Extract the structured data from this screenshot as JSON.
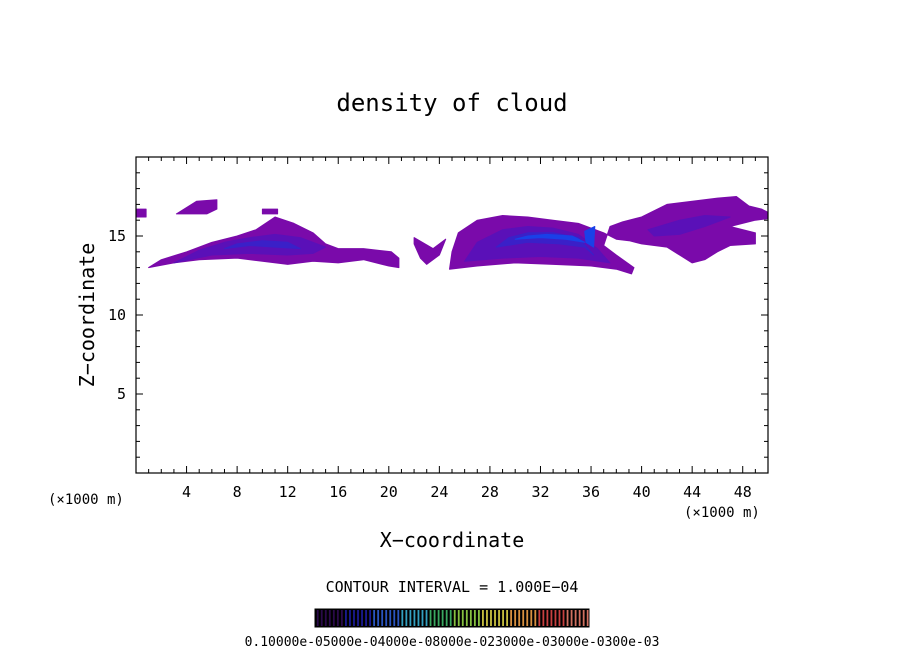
{
  "chart_data": {
    "type": "heatmap",
    "title": "density of cloud",
    "xlabel": "X−coordinate",
    "ylabel": "Z−coordinate",
    "x_unit_left": "(×1000 m)",
    "x_unit_right": "(×1000 m)",
    "xlim": [
      0,
      50
    ],
    "ylim": [
      0,
      20
    ],
    "x_ticks": [
      {
        "value": 4,
        "label": "4"
      },
      {
        "value": 8,
        "label": "8"
      },
      {
        "value": 12,
        "label": "12"
      },
      {
        "value": 16,
        "label": "16"
      },
      {
        "value": 20,
        "label": "20"
      },
      {
        "value": 24,
        "label": "24"
      },
      {
        "value": 28,
        "label": "28"
      },
      {
        "value": 32,
        "label": "32"
      },
      {
        "value": 36,
        "label": "36"
      },
      {
        "value": 40,
        "label": "40"
      },
      {
        "value": 44,
        "label": "44"
      },
      {
        "value": 48,
        "label": "48"
      }
    ],
    "y_ticks": [
      {
        "value": 5,
        "label": "5"
      },
      {
        "value": 10,
        "label": "10"
      },
      {
        "value": 15,
        "label": "15"
      }
    ],
    "grid": false,
    "contour_interval_text": "CONTOUR INTERVAL = 1.000E−04",
    "colorbar_labels_text": "0.10000e-05000e-04000e-08000e-023000e-03000e-0300e-03",
    "colorbar_colors": [
      "#2a0a4a",
      "#1a1a90",
      "#2a55c0",
      "#33a0c0",
      "#3aa860",
      "#86c040",
      "#c8c040",
      "#d89040",
      "#c84040",
      "#d07060"
    ],
    "fill_colors": {
      "level1": "#7a0aaa",
      "level2": "#5a10b8",
      "level3": "#3a20c8",
      "level4": "#1a40e8"
    },
    "cloud_regions": [
      {
        "level": 1,
        "points": [
          [
            0,
            16.2
          ],
          [
            0.8,
            16.2
          ],
          [
            0.8,
            16.7
          ],
          [
            0,
            16.7
          ]
        ]
      },
      {
        "level": 1,
        "points": [
          [
            3.2,
            16.4
          ],
          [
            4.8,
            17.2
          ],
          [
            6.4,
            17.3
          ],
          [
            6.4,
            16.7
          ],
          [
            5.6,
            16.4
          ],
          [
            4.0,
            16.4
          ]
        ]
      },
      {
        "level": 1,
        "points": [
          [
            1.0,
            13.0
          ],
          [
            3.0,
            13.3
          ],
          [
            5.0,
            13.5
          ],
          [
            8.0,
            13.6
          ],
          [
            10.0,
            13.4
          ],
          [
            12.0,
            13.2
          ],
          [
            14.0,
            13.4
          ],
          [
            16.0,
            13.3
          ],
          [
            18.0,
            13.5
          ],
          [
            20.0,
            13.1
          ],
          [
            20.8,
            13.0
          ],
          [
            20.8,
            13.6
          ],
          [
            20.2,
            14.0
          ],
          [
            18.0,
            14.2
          ],
          [
            16.0,
            14.2
          ],
          [
            15.0,
            14.5
          ],
          [
            14.0,
            15.2
          ],
          [
            12.5,
            15.8
          ],
          [
            11.0,
            16.2
          ],
          [
            9.5,
            15.4
          ],
          [
            8.0,
            15.0
          ],
          [
            6.0,
            14.6
          ],
          [
            4.0,
            14.0
          ],
          [
            2.0,
            13.5
          ]
        ]
      },
      {
        "level": 1,
        "points": [
          [
            10.0,
            16.4
          ],
          [
            11.2,
            16.4
          ],
          [
            11.2,
            16.7
          ],
          [
            10.0,
            16.7
          ]
        ]
      },
      {
        "level": 1,
        "points": [
          [
            22.0,
            14.9
          ],
          [
            23.5,
            14.2
          ],
          [
            24.5,
            14.8
          ],
          [
            24.0,
            13.8
          ],
          [
            23.0,
            13.2
          ],
          [
            22.5,
            13.6
          ],
          [
            22.0,
            14.5
          ]
        ]
      },
      {
        "level": 1,
        "points": [
          [
            24.8,
            12.9
          ],
          [
            27.0,
            13.1
          ],
          [
            30.0,
            13.3
          ],
          [
            33.0,
            13.2
          ],
          [
            36.0,
            13.1
          ],
          [
            38.0,
            12.9
          ],
          [
            39.2,
            12.6
          ],
          [
            39.4,
            13.0
          ],
          [
            38.0,
            13.8
          ],
          [
            37.0,
            14.4
          ],
          [
            37.5,
            15.6
          ],
          [
            38.5,
            15.9
          ],
          [
            40.0,
            16.2
          ],
          [
            42.0,
            17.0
          ],
          [
            44.0,
            17.2
          ],
          [
            46.0,
            17.4
          ],
          [
            47.5,
            17.5
          ],
          [
            48.5,
            16.9
          ],
          [
            49.5,
            16.7
          ],
          [
            50,
            16.5
          ],
          [
            50,
            16.1
          ],
          [
            49.0,
            16.0
          ],
          [
            47.0,
            15.6
          ],
          [
            49.0,
            15.2
          ],
          [
            49.0,
            14.5
          ],
          [
            47.0,
            14.4
          ],
          [
            46.0,
            14.0
          ],
          [
            45.0,
            13.5
          ],
          [
            44.0,
            13.3
          ],
          [
            43.0,
            13.8
          ],
          [
            42.0,
            14.3
          ],
          [
            40.0,
            14.5
          ],
          [
            39.0,
            14.7
          ],
          [
            38.0,
            14.8
          ],
          [
            37.0,
            15.2
          ],
          [
            35.0,
            15.8
          ],
          [
            33.0,
            16.0
          ],
          [
            31.0,
            16.2
          ],
          [
            29.0,
            16.3
          ],
          [
            27.0,
            16.0
          ],
          [
            25.5,
            15.2
          ],
          [
            25.0,
            14.0
          ]
        ]
      },
      {
        "level": 2,
        "points": [
          [
            3.0,
            13.3
          ],
          [
            6.0,
            13.8
          ],
          [
            9.0,
            13.9
          ],
          [
            12.0,
            13.8
          ],
          [
            14.0,
            13.9
          ],
          [
            15.0,
            14.3
          ],
          [
            13.0,
            14.9
          ],
          [
            11.0,
            15.1
          ],
          [
            9.0,
            14.9
          ],
          [
            7.0,
            14.6
          ],
          [
            5.0,
            14.1
          ]
        ]
      },
      {
        "level": 2,
        "points": [
          [
            26.0,
            13.4
          ],
          [
            29.0,
            13.6
          ],
          [
            32.0,
            13.7
          ],
          [
            35.0,
            13.6
          ],
          [
            37.5,
            13.3
          ],
          [
            36.5,
            14.2
          ],
          [
            35.0,
            15.1
          ],
          [
            33.0,
            15.5
          ],
          [
            31.0,
            15.6
          ],
          [
            29.0,
            15.4
          ],
          [
            27.0,
            14.6
          ]
        ]
      },
      {
        "level": 2,
        "points": [
          [
            40.5,
            15.4
          ],
          [
            43.0,
            16.0
          ],
          [
            45.0,
            16.3
          ],
          [
            47.0,
            16.2
          ],
          [
            45.0,
            15.6
          ],
          [
            43.0,
            15.1
          ],
          [
            41.0,
            15.0
          ]
        ]
      },
      {
        "level": 3,
        "points": [
          [
            7.0,
            14.2
          ],
          [
            9.0,
            14.4
          ],
          [
            11.0,
            14.3
          ],
          [
            13.0,
            14.2
          ],
          [
            12.0,
            14.6
          ],
          [
            10.0,
            14.7
          ],
          [
            8.0,
            14.5
          ]
        ]
      },
      {
        "level": 3,
        "points": [
          [
            28.5,
            14.3
          ],
          [
            31.0,
            14.6
          ],
          [
            33.5,
            14.5
          ],
          [
            35.5,
            14.3
          ],
          [
            36.2,
            13.8
          ],
          [
            35.0,
            14.9
          ],
          [
            33.0,
            15.2
          ],
          [
            31.0,
            15.2
          ],
          [
            29.5,
            14.9
          ]
        ]
      },
      {
        "level": 4,
        "points": [
          [
            30.0,
            14.8
          ],
          [
            32.0,
            14.9
          ],
          [
            34.0,
            14.8
          ],
          [
            35.5,
            14.6
          ],
          [
            34.5,
            15.0
          ],
          [
            32.5,
            15.1
          ],
          [
            31.0,
            15.0
          ]
        ]
      },
      {
        "level": 4,
        "points": [
          [
            35.5,
            15.3
          ],
          [
            36.3,
            15.6
          ],
          [
            36.2,
            14.3
          ],
          [
            35.6,
            14.6
          ]
        ]
      }
    ]
  }
}
